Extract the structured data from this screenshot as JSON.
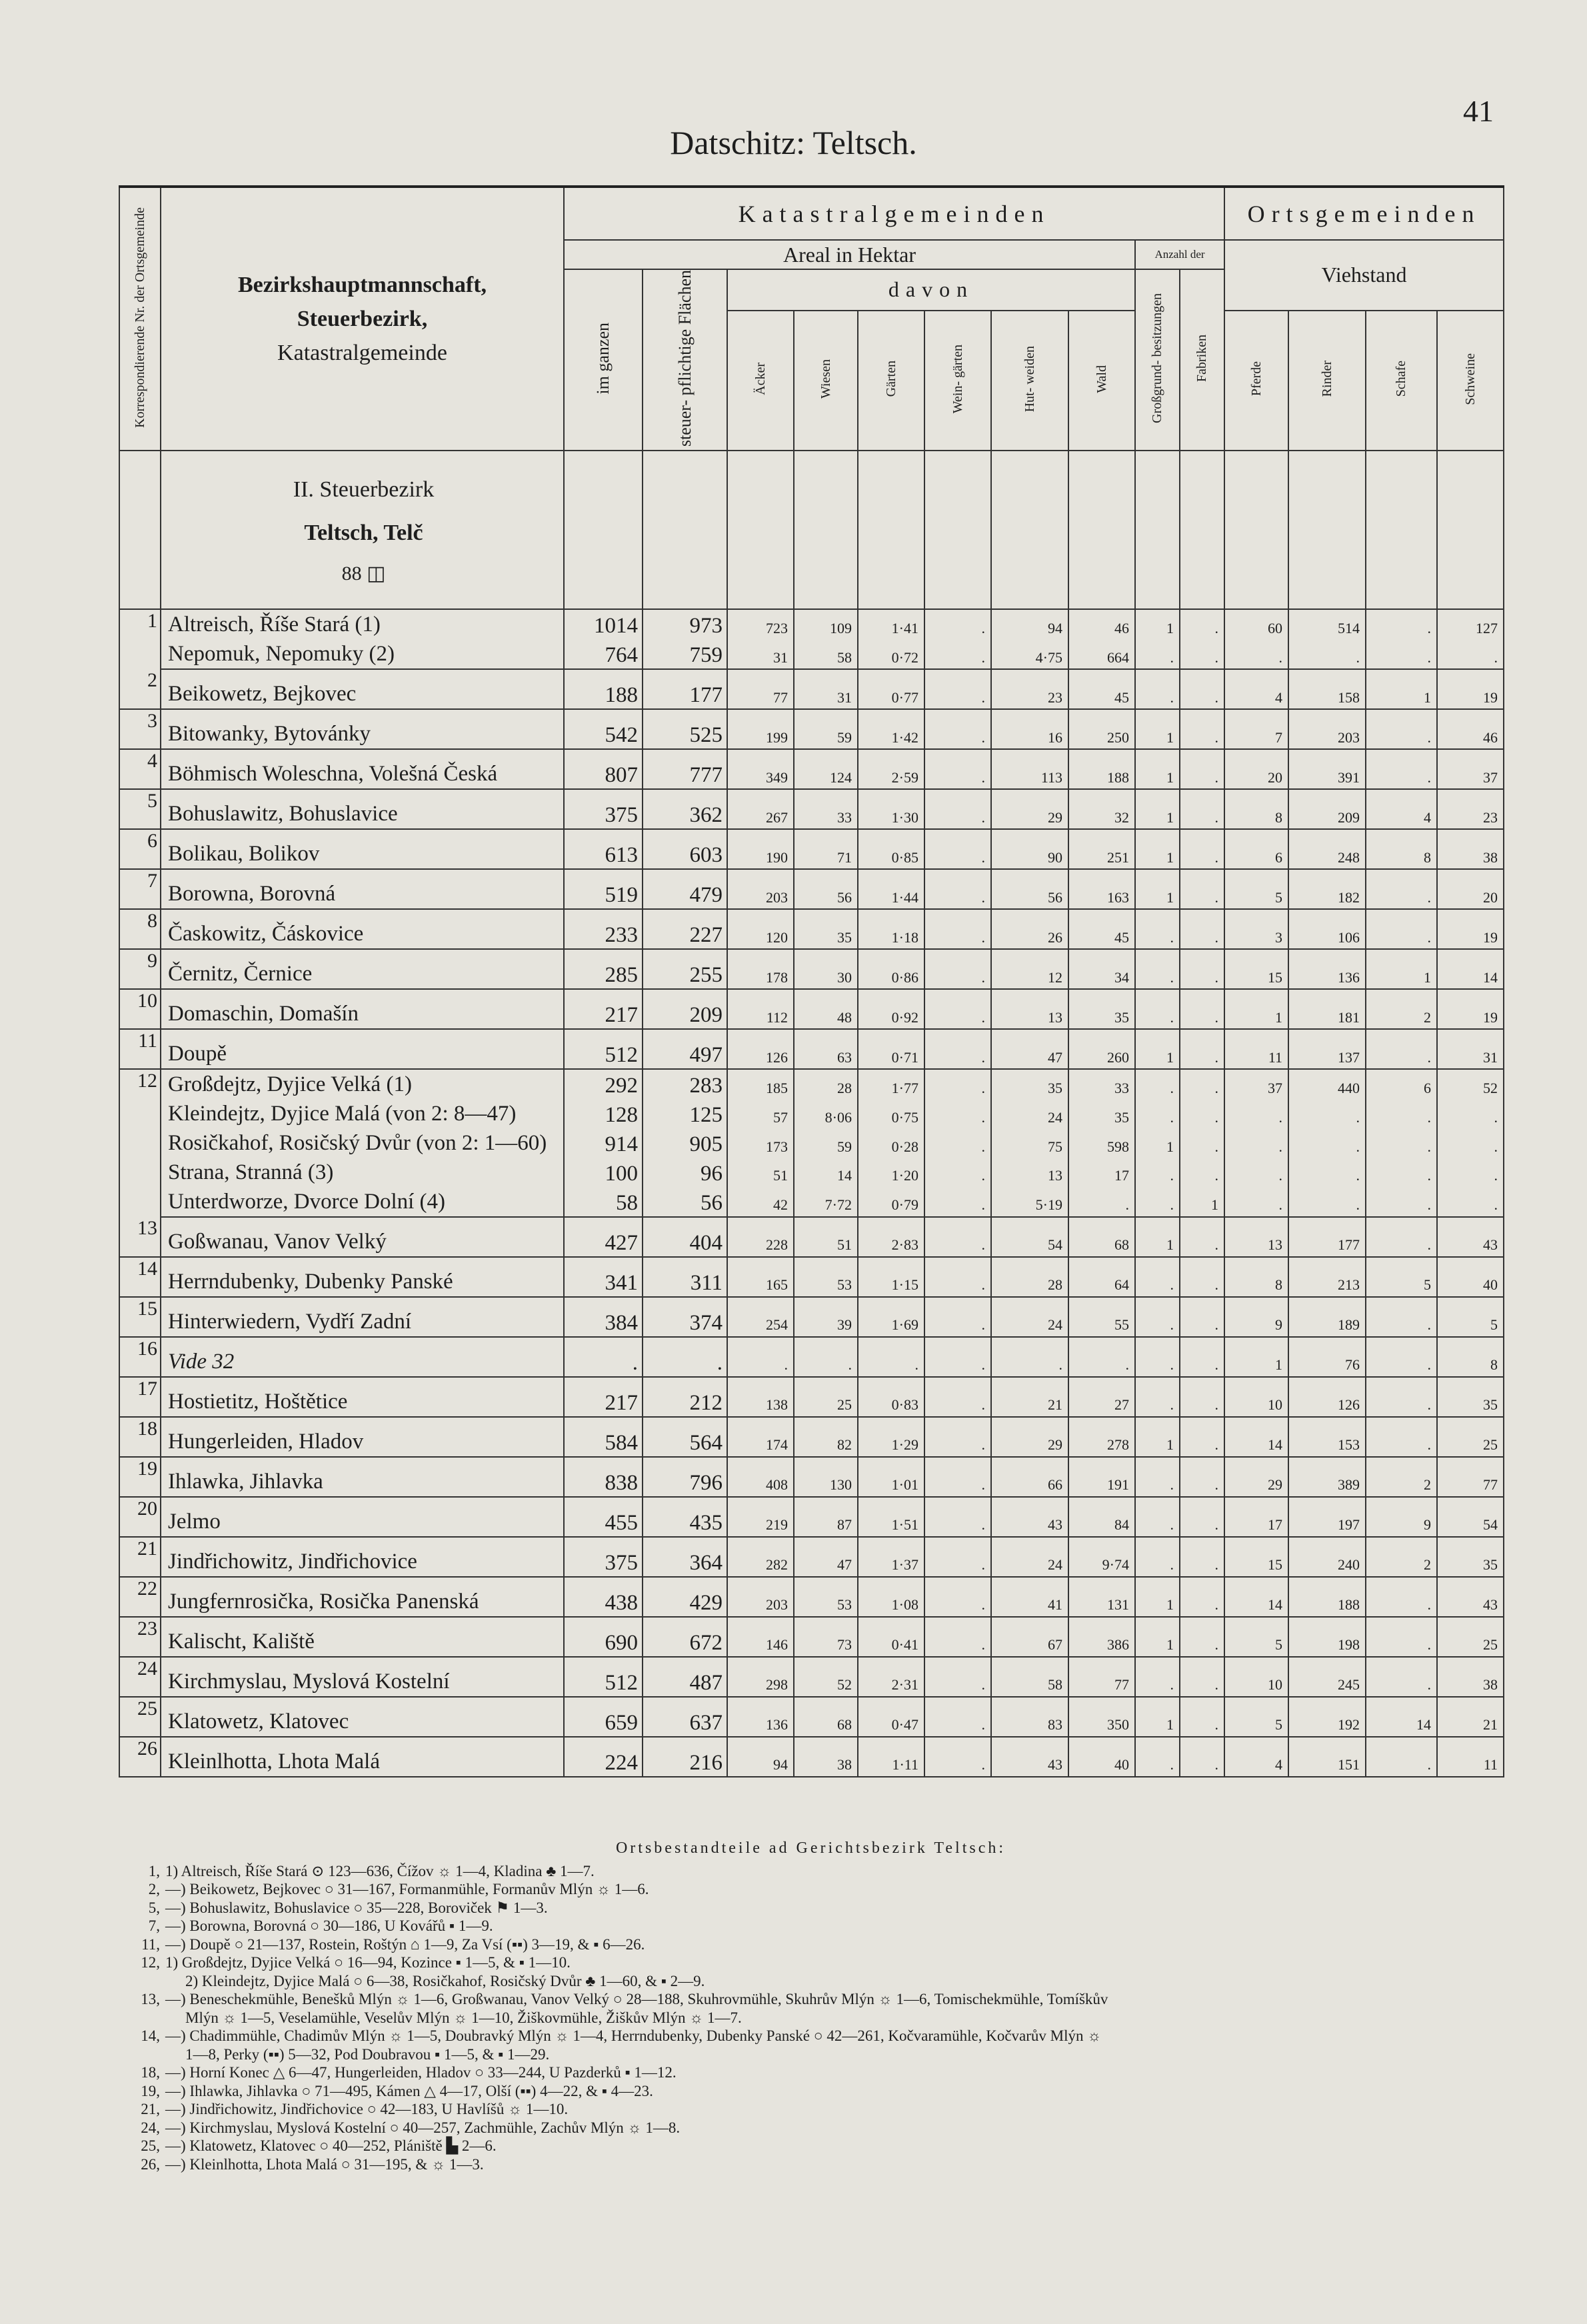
{
  "header": {
    "page_title": "Datschitz: Teltsch.",
    "page_number": "41"
  },
  "table": {
    "columns": {
      "nr": "Korrespondierende Nr. der Ortsgemeinde",
      "name_lines": [
        "Bezirkshauptmannschaft,",
        "Steuerbezirk,",
        "Katastralgemeinde"
      ],
      "katastral": "Katastralgemeinden",
      "areal": "Areal in Hektar",
      "anzahl": "Anzahl der",
      "davon": "davon",
      "ortsgemeinden": "Ortsgemeinden",
      "viehstand": "Viehstand",
      "im_ganzen": "im ganzen",
      "steuer": "steuer- pflichtige Flächen",
      "aecker": "Äcker",
      "wiesen": "Wiesen",
      "gaerten": "Gärten",
      "weingaerten": "Wein- gärten",
      "hutweiden": "Hut- weiden",
      "wald": "Wald",
      "grossgrund": "Großgrund- besitzungen",
      "fabriken": "Fabriken",
      "pferde": "Pferde",
      "rinder": "Rinder",
      "schafe": "Schafe",
      "schweine": "Schweine"
    },
    "preamble": [
      "II. Steuerbezirk",
      "Teltsch, Telč",
      "88 ◫"
    ],
    "rows": [
      {
        "nr": "1",
        "entries": [
          {
            "name": "Altreisch, Říše Stará (1)",
            "values": [
              "1014",
              "973",
              "723",
              "109",
              "1·41",
              ".",
              "94",
              "46",
              "1",
              ".",
              "60",
              "514",
              ".",
              "127"
            ]
          },
          {
            "name": "Nepomuk, Nepomuky (2)",
            "values": [
              "764",
              "759",
              "31",
              "58",
              "0·72",
              ".",
              "4·75",
              "664",
              ".",
              ".",
              ".",
              ".",
              ".",
              "."
            ]
          }
        ]
      },
      {
        "nr": "2",
        "entries": [
          {
            "name": "Beikowetz, Bejkovec",
            "values": [
              "188",
              "177",
              "77",
              "31",
              "0·77",
              ".",
              "23",
              "45",
              ".",
              ".",
              "4",
              "158",
              "1",
              "19"
            ]
          }
        ]
      },
      {
        "nr": "3",
        "entries": [
          {
            "name": "Bitowanky, Bytovánky",
            "values": [
              "542",
              "525",
              "199",
              "59",
              "1·42",
              ".",
              "16",
              "250",
              "1",
              ".",
              "7",
              "203",
              ".",
              "46"
            ]
          }
        ]
      },
      {
        "nr": "4",
        "entries": [
          {
            "name": "Böhmisch Woleschna, Volešná Česká",
            "values": [
              "807",
              "777",
              "349",
              "124",
              "2·59",
              ".",
              "113",
              "188",
              "1",
              ".",
              "20",
              "391",
              ".",
              "37"
            ]
          }
        ]
      },
      {
        "nr": "5",
        "entries": [
          {
            "name": "Bohuslawitz, Bohuslavice",
            "values": [
              "375",
              "362",
              "267",
              "33",
              "1·30",
              ".",
              "29",
              "32",
              "1",
              ".",
              "8",
              "209",
              "4",
              "23"
            ]
          }
        ]
      },
      {
        "nr": "6",
        "entries": [
          {
            "name": "Bolikau, Bolikov",
            "values": [
              "613",
              "603",
              "190",
              "71",
              "0·85",
              ".",
              "90",
              "251",
              "1",
              ".",
              "6",
              "248",
              "8",
              "38"
            ]
          }
        ]
      },
      {
        "nr": "7",
        "entries": [
          {
            "name": "Borowna, Borovná",
            "values": [
              "519",
              "479",
              "203",
              "56",
              "1·44",
              ".",
              "56",
              "163",
              "1",
              ".",
              "5",
              "182",
              ".",
              "20"
            ]
          }
        ]
      },
      {
        "nr": "8",
        "entries": [
          {
            "name": "Časkowitz, Čáskovice",
            "values": [
              "233",
              "227",
              "120",
              "35",
              "1·18",
              ".",
              "26",
              "45",
              ".",
              ".",
              "3",
              "106",
              ".",
              "19"
            ]
          }
        ]
      },
      {
        "nr": "9",
        "entries": [
          {
            "name": "Černitz, Černice",
            "values": [
              "285",
              "255",
              "178",
              "30",
              "0·86",
              ".",
              "12",
              "34",
              ".",
              ".",
              "15",
              "136",
              "1",
              "14"
            ]
          }
        ]
      },
      {
        "nr": "10",
        "entries": [
          {
            "name": "Domaschin, Domašín",
            "values": [
              "217",
              "209",
              "112",
              "48",
              "0·92",
              ".",
              "13",
              "35",
              ".",
              ".",
              "1",
              "181",
              "2",
              "19"
            ]
          }
        ]
      },
      {
        "nr": "11",
        "entries": [
          {
            "name": "Doupě",
            "values": [
              "512",
              "497",
              "126",
              "63",
              "0·71",
              ".",
              "47",
              "260",
              "1",
              ".",
              "11",
              "137",
              ".",
              "31"
            ]
          }
        ]
      },
      {
        "nr": "12",
        "entries": [
          {
            "name": "Großdejtz, Dyjice Velká (1)",
            "values": [
              "292",
              "283",
              "185",
              "28",
              "1·77",
              ".",
              "35",
              "33",
              ".",
              ".",
              "37",
              "440",
              "6",
              "52"
            ]
          },
          {
            "name": "Kleindejtz, Dyjice Malá (von 2: 8—47)",
            "values": [
              "128",
              "125",
              "57",
              "8·06",
              "0·75",
              ".",
              "24",
              "35",
              ".",
              ".",
              ".",
              ".",
              ".",
              "."
            ]
          },
          {
            "name": "Rosičkahof, Rosičský Dvůr (von 2: 1—60)",
            "values": [
              "914",
              "905",
              "173",
              "59",
              "0·28",
              ".",
              "75",
              "598",
              "1",
              ".",
              ".",
              ".",
              ".",
              "."
            ]
          },
          {
            "name": "Strana, Stranná (3)",
            "values": [
              "100",
              "96",
              "51",
              "14",
              "1·20",
              ".",
              "13",
              "17",
              ".",
              ".",
              ".",
              ".",
              ".",
              "."
            ]
          },
          {
            "name": "Unterdworze, Dvorce Dolní (4)",
            "values": [
              "58",
              "56",
              "42",
              "7·72",
              "0·79",
              ".",
              "5·19",
              ".",
              ".",
              "1",
              ".",
              ".",
              ".",
              "."
            ]
          }
        ]
      },
      {
        "nr": "13",
        "entries": [
          {
            "name": "Goßwanau, Vanov Velký",
            "values": [
              "427",
              "404",
              "228",
              "51",
              "2·83",
              ".",
              "54",
              "68",
              "1",
              ".",
              "13",
              "177",
              ".",
              "43"
            ]
          }
        ]
      },
      {
        "nr": "14",
        "entries": [
          {
            "name": "Herrndubenky, Dubenky Panské",
            "values": [
              "341",
              "311",
              "165",
              "53",
              "1·15",
              ".",
              "28",
              "64",
              ".",
              ".",
              "8",
              "213",
              "5",
              "40"
            ]
          }
        ]
      },
      {
        "nr": "15",
        "entries": [
          {
            "name": "Hinterwiedern, Vydří Zadní",
            "values": [
              "384",
              "374",
              "254",
              "39",
              "1·69",
              ".",
              "24",
              "55",
              ".",
              ".",
              "9",
              "189",
              ".",
              "5"
            ]
          }
        ]
      },
      {
        "nr": "16",
        "entries": [
          {
            "name": "Vide 32",
            "values": [
              ".",
              ".",
              ".",
              ".",
              ".",
              ".",
              ".",
              ".",
              ".",
              ".",
              "1",
              "76",
              ".",
              "8"
            ]
          }
        ]
      },
      {
        "nr": "17",
        "entries": [
          {
            "name": "Hostietitz, Hoštětice",
            "values": [
              "217",
              "212",
              "138",
              "25",
              "0·83",
              ".",
              "21",
              "27",
              ".",
              ".",
              "10",
              "126",
              ".",
              "35"
            ]
          }
        ]
      },
      {
        "nr": "18",
        "entries": [
          {
            "name": "Hungerleiden, Hladov",
            "values": [
              "584",
              "564",
              "174",
              "82",
              "1·29",
              ".",
              "29",
              "278",
              "1",
              ".",
              "14",
              "153",
              ".",
              "25"
            ]
          }
        ]
      },
      {
        "nr": "19",
        "entries": [
          {
            "name": "Ihlawka, Jihlavka",
            "values": [
              "838",
              "796",
              "408",
              "130",
              "1·01",
              ".",
              "66",
              "191",
              ".",
              ".",
              "29",
              "389",
              "2",
              "77"
            ]
          }
        ]
      },
      {
        "nr": "20",
        "entries": [
          {
            "name": "Jelmo",
            "values": [
              "455",
              "435",
              "219",
              "87",
              "1·51",
              ".",
              "43",
              "84",
              ".",
              ".",
              "17",
              "197",
              "9",
              "54"
            ]
          }
        ]
      },
      {
        "nr": "21",
        "entries": [
          {
            "name": "Jindřichowitz, Jindřichovice",
            "values": [
              "375",
              "364",
              "282",
              "47",
              "1·37",
              ".",
              "24",
              "9·74",
              ".",
              ".",
              "15",
              "240",
              "2",
              "35"
            ]
          }
        ]
      },
      {
        "nr": "22",
        "entries": [
          {
            "name": "Jungfernrosička, Rosička Panenská",
            "values": [
              "438",
              "429",
              "203",
              "53",
              "1·08",
              ".",
              "41",
              "131",
              "1",
              ".",
              "14",
              "188",
              ".",
              "43"
            ]
          }
        ]
      },
      {
        "nr": "23",
        "entries": [
          {
            "name": "Kalischt, Kaliště",
            "values": [
              "690",
              "672",
              "146",
              "73",
              "0·41",
              ".",
              "67",
              "386",
              "1",
              ".",
              "5",
              "198",
              ".",
              "25"
            ]
          }
        ]
      },
      {
        "nr": "24",
        "entries": [
          {
            "name": "Kirchmyslau, Myslová Kostelní",
            "values": [
              "512",
              "487",
              "298",
              "52",
              "2·31",
              ".",
              "58",
              "77",
              ".",
              ".",
              "10",
              "245",
              ".",
              "38"
            ]
          }
        ]
      },
      {
        "nr": "25",
        "entries": [
          {
            "name": "Klatowetz, Klatovec",
            "values": [
              "659",
              "637",
              "136",
              "68",
              "0·47",
              ".",
              "83",
              "350",
              "1",
              ".",
              "5",
              "192",
              "14",
              "21"
            ]
          }
        ]
      },
      {
        "nr": "26",
        "entries": [
          {
            "name": "Kleinlhotta, Lhota Malá",
            "values": [
              "224",
              "216",
              "94",
              "38",
              "1·11",
              ".",
              "43",
              "40",
              ".",
              ".",
              "4",
              "151",
              ".",
              "11"
            ]
          }
        ]
      }
    ]
  },
  "footnotes": {
    "title": "Ortsbestandteile ad Gerichtsbezirk Teltsch:",
    "lines": [
      {
        "nr": "1,",
        "text": "1) Altreisch, Říše Stará ⊙ 123—636, Čížov ☼ 1—4, Kladina ♣ 1—7."
      },
      {
        "nr": "2,",
        "text": "—) Beikowetz, Bejkovec ○ 31—167, Formanmühle, Formanův Mlýn ☼ 1—6."
      },
      {
        "nr": "5,",
        "text": "—) Bohuslawitz, Bohuslavice ○ 35—228, Boroviček ⚑ 1—3."
      },
      {
        "nr": "7,",
        "text": "—) Borowna, Borovná ○ 30—186, U Kovářů ▪ 1—9."
      },
      {
        "nr": "11,",
        "text": "—) Doupě ○ 21—137, Rostein, Roštýn ⌂ 1—9, Za Vsí (▪▪) 3—19, & ▪ 6—26."
      },
      {
        "nr": "12,",
        "text": "1) Großdejtz, Dyjice Velká ○ 16—94, Kozince ▪ 1—5, & ▪ 1—10."
      },
      {
        "nr": "",
        "text": "2) Kleindejtz, Dyjice Malá ○ 6—38, Rosičkahof, Rosičský Dvůr ♣ 1—60, & ▪ 2—9."
      },
      {
        "nr": "13,",
        "text": "—) Beneschekmühle, Benešků Mlýn ☼ 1—6, Großwanau, Vanov Velký ○ 28—188, Skuhrovmühle, Skuhrův Mlýn ☼ 1—6, Tomischekmühle, Tomíškův"
      },
      {
        "nr": "",
        "text": "Mlýn ☼ 1—5, Veselamühle, Veselův Mlýn ☼ 1—10, Žiškovmühle, Žiškův Mlýn ☼ 1—7."
      },
      {
        "nr": "14,",
        "text": "—) Chadimmühle, Chadimův Mlýn ☼ 1—5, Doubravký Mlýn ☼ 1—4, Herrndubenky, Dubenky Panské ○ 42—261, Kočvaramühle, Kočvarův Mlýn ☼"
      },
      {
        "nr": "",
        "text": "1—8, Perky (▪▪) 5—32, Pod Doubravou ▪ 1—5, & ▪ 1—29."
      },
      {
        "nr": "18,",
        "text": "—) Horní Konec △ 6—47, Hungerleiden, Hladov ○ 33—244, U Pazderků ▪ 1—12."
      },
      {
        "nr": "19,",
        "text": "—) Ihlawka, Jihlavka ○ 71—495, Kámen △ 4—17, Olší (▪▪) 4—22, & ▪ 4—23."
      },
      {
        "nr": "21,",
        "text": "—) Jindřichowitz, Jindřichovice ○ 42—183, U Havlíšů ☼ 1—10."
      },
      {
        "nr": "24,",
        "text": "—) Kirchmyslau, Myslová Kostelní ○ 40—257, Zachmühle, Zachův Mlýn ☼ 1—8."
      },
      {
        "nr": "25,",
        "text": "—) Klatowetz, Klatovec ○ 40—252, Plániště ▙ 2—6."
      },
      {
        "nr": "26,",
        "text": "—) Kleinlhotta, Lhota Malá ○ 31—195, & ☼ 1—3."
      }
    ]
  }
}
